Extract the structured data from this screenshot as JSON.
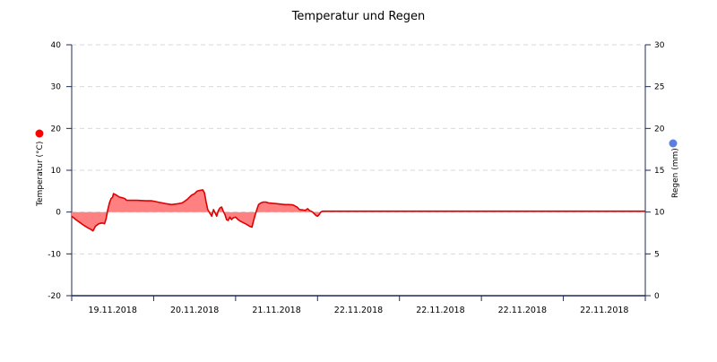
{
  "chart_data": {
    "type": "line",
    "title": "Temperatur und Regen",
    "y_left": {
      "label": "Temperatur (°C)",
      "range": [
        -20,
        40
      ],
      "ticks": [
        "40",
        "30",
        "20",
        "10",
        "0",
        "-10",
        "-20"
      ],
      "marker_color": "#ff0000"
    },
    "y_right": {
      "label": "Regen (mm)",
      "range": [
        0,
        30
      ],
      "ticks": [
        "30",
        "25",
        "20",
        "15",
        "10",
        "5",
        "0"
      ],
      "marker_color": "#5b7fe0"
    },
    "x_tick_labels": [
      "19.11.2018",
      "20.11.2018",
      "21.11.2018",
      "22.11.2018",
      "22.11.2018",
      "22.11.2018",
      "22.11.2018"
    ],
    "x_range_days": [
      0,
      7
    ],
    "grid": "horizontal dashed",
    "colors": {
      "temperature_line": "#e00000",
      "temperature_fill": "#ff8080",
      "axis": "#1f2a55",
      "grid": "#d9d9d9"
    },
    "series": [
      {
        "name": "Temperatur (°C)",
        "points": [
          [
            0.0,
            -1.0
          ],
          [
            0.05,
            -1.8
          ],
          [
            0.1,
            -2.5
          ],
          [
            0.15,
            -3.2
          ],
          [
            0.2,
            -3.8
          ],
          [
            0.24,
            -4.2
          ],
          [
            0.26,
            -4.5
          ],
          [
            0.29,
            -3.4
          ],
          [
            0.33,
            -2.8
          ],
          [
            0.37,
            -2.6
          ],
          [
            0.4,
            -2.8
          ],
          [
            0.42,
            -1.6
          ],
          [
            0.44,
            0.5
          ],
          [
            0.46,
            2.2
          ],
          [
            0.48,
            3.2
          ],
          [
            0.5,
            3.6
          ],
          [
            0.51,
            4.4
          ],
          [
            0.53,
            4.2
          ],
          [
            0.55,
            4.0
          ],
          [
            0.58,
            3.6
          ],
          [
            0.62,
            3.4
          ],
          [
            0.65,
            3.2
          ],
          [
            0.67,
            2.8
          ],
          [
            0.7,
            2.8
          ],
          [
            0.8,
            2.8
          ],
          [
            0.9,
            2.7
          ],
          [
            0.97,
            2.7
          ],
          [
            1.0,
            2.6
          ],
          [
            1.05,
            2.4
          ],
          [
            1.1,
            2.2
          ],
          [
            1.15,
            2.0
          ],
          [
            1.22,
            1.8
          ],
          [
            1.3,
            2.0
          ],
          [
            1.35,
            2.2
          ],
          [
            1.38,
            2.6
          ],
          [
            1.42,
            3.2
          ],
          [
            1.46,
            4.0
          ],
          [
            1.5,
            4.4
          ],
          [
            1.53,
            5.0
          ],
          [
            1.57,
            5.2
          ],
          [
            1.6,
            5.3
          ],
          [
            1.62,
            4.6
          ],
          [
            1.64,
            2.5
          ],
          [
            1.66,
            0.6
          ],
          [
            1.69,
            -0.4
          ],
          [
            1.71,
            -1.0
          ],
          [
            1.73,
            0.6
          ],
          [
            1.75,
            -0.2
          ],
          [
            1.77,
            -1.0
          ],
          [
            1.79,
            0.4
          ],
          [
            1.81,
            1.0
          ],
          [
            1.83,
            1.2
          ],
          [
            1.85,
            0.2
          ],
          [
            1.87,
            -0.6
          ],
          [
            1.89,
            -1.8
          ],
          [
            1.91,
            -2.0
          ],
          [
            1.93,
            -1.2
          ],
          [
            1.95,
            -1.8
          ],
          [
            1.97,
            -1.4
          ],
          [
            2.0,
            -1.2
          ],
          [
            2.03,
            -1.8
          ],
          [
            2.06,
            -2.2
          ],
          [
            2.1,
            -2.6
          ],
          [
            2.14,
            -3.0
          ],
          [
            2.17,
            -3.4
          ],
          [
            2.2,
            -3.6
          ],
          [
            2.22,
            -2.0
          ],
          [
            2.24,
            -0.6
          ],
          [
            2.26,
            0.6
          ],
          [
            2.28,
            1.8
          ],
          [
            2.31,
            2.2
          ],
          [
            2.34,
            2.4
          ],
          [
            2.37,
            2.4
          ],
          [
            2.4,
            2.2
          ],
          [
            2.45,
            2.1
          ],
          [
            2.5,
            2.0
          ],
          [
            2.55,
            1.9
          ],
          [
            2.6,
            1.8
          ],
          [
            2.65,
            1.8
          ],
          [
            2.7,
            1.7
          ],
          [
            2.75,
            1.2
          ],
          [
            2.78,
            0.6
          ],
          [
            2.82,
            0.5
          ],
          [
            2.85,
            0.4
          ],
          [
            2.88,
            0.8
          ],
          [
            2.9,
            0.4
          ],
          [
            2.92,
            0.2
          ],
          [
            2.94,
            0.0
          ],
          [
            2.96,
            -0.4
          ],
          [
            2.98,
            -0.8
          ],
          [
            3.0,
            -1.0
          ],
          [
            3.02,
            -0.6
          ],
          [
            3.04,
            0.0
          ],
          [
            3.06,
            0.2
          ],
          [
            7.0,
            0.2
          ]
        ]
      }
    ]
  }
}
